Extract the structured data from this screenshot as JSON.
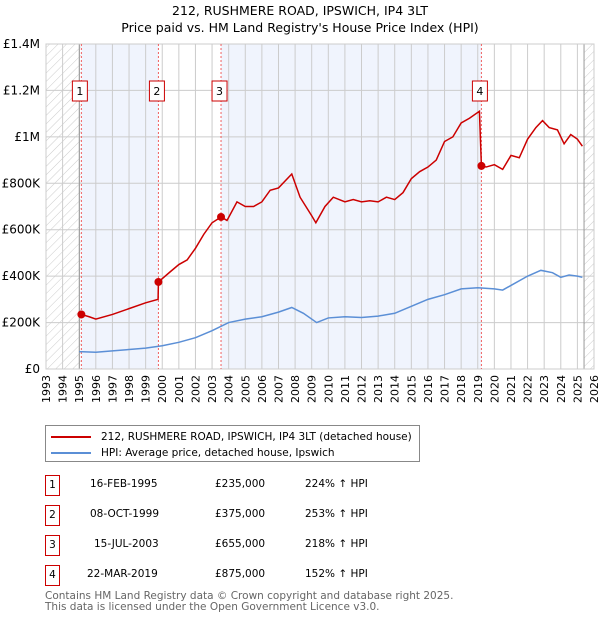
{
  "title": "212, RUSHMERE ROAD, IPSWICH, IP4 3LT",
  "subtitle": "Price paid vs. HM Land Registry's House Price Index (HPI)",
  "chart_data": {
    "type": "line",
    "xlim": [
      1993,
      2026
    ],
    "ylim": [
      0,
      1400000
    ],
    "x_ticks": [
      "1993",
      "1994",
      "1995",
      "1996",
      "1997",
      "1998",
      "1999",
      "2000",
      "2001",
      "2002",
      "2003",
      "2004",
      "2005",
      "2006",
      "2007",
      "2008",
      "2009",
      "2010",
      "2011",
      "2012",
      "2013",
      "2014",
      "2015",
      "2016",
      "2017",
      "2018",
      "2019",
      "2020",
      "2021",
      "2022",
      "2023",
      "2024",
      "2025",
      "2026"
    ],
    "y_ticks": [
      {
        "v": 0,
        "label": "£0"
      },
      {
        "v": 200000,
        "label": "£200K"
      },
      {
        "v": 400000,
        "label": "£400K"
      },
      {
        "v": 600000,
        "label": "£600K"
      },
      {
        "v": 800000,
        "label": "£800K"
      },
      {
        "v": 1000000,
        "label": "£1M"
      },
      {
        "v": 1200000,
        "label": "£1.2M"
      },
      {
        "v": 1400000,
        "label": "£1.4M"
      }
    ],
    "grid": true,
    "data_end": 2025.4,
    "series": [
      {
        "name": "212, RUSHMERE ROAD, IPSWICH, IP4 3LT (detached house)",
        "color": "#cc0000",
        "x": [
          1995.13,
          1995.6,
          1996,
          1997,
          1998,
          1999,
          1999.75,
          1999.77,
          2000.5,
          2001,
          2001.5,
          2002,
          2002.5,
          2003,
          2003.54,
          2003.9,
          2004.5,
          2005,
          2005.5,
          2006,
          2006.5,
          2007,
          2007.8,
          2008.3,
          2009,
          2009.25,
          2009.8,
          2010.3,
          2011,
          2011.5,
          2012,
          2012.5,
          2013,
          2013.5,
          2014,
          2014.5,
          2015,
          2015.5,
          2016,
          2016.5,
          2017,
          2017.5,
          2018,
          2018.5,
          2019.1,
          2019.22,
          2019.5,
          2020,
          2020.5,
          2021,
          2021.5,
          2022,
          2022.5,
          2022.9,
          2023.3,
          2023.8,
          2024.2,
          2024.6,
          2025,
          2025.3
        ],
        "y": [
          235000,
          225000,
          215000,
          235000,
          260000,
          285000,
          300000,
          375000,
          420000,
          450000,
          470000,
          520000,
          580000,
          630000,
          655000,
          640000,
          720000,
          700000,
          700000,
          720000,
          770000,
          780000,
          840000,
          740000,
          660000,
          630000,
          700000,
          740000,
          720000,
          730000,
          720000,
          725000,
          720000,
          740000,
          730000,
          760000,
          820000,
          850000,
          870000,
          900000,
          980000,
          1000000,
          1060000,
          1080000,
          1110000,
          875000,
          870000,
          880000,
          860000,
          920000,
          910000,
          990000,
          1040000,
          1070000,
          1040000,
          1030000,
          970000,
          1010000,
          990000,
          960000
        ]
      },
      {
        "name": "HPI: Average price, detached house, Ipswich",
        "color": "#5b8fd6",
        "x": [
          1995,
          1996,
          1997,
          1998,
          1999,
          2000,
          2001,
          2002,
          2003,
          2004,
          2005,
          2006,
          2007,
          2007.8,
          2008.5,
          2009.3,
          2010,
          2011,
          2012,
          2013,
          2014,
          2015,
          2016,
          2017,
          2018,
          2019,
          2020,
          2020.5,
          2021,
          2022,
          2022.8,
          2023.5,
          2024,
          2024.5,
          2025,
          2025.3
        ],
        "y": [
          75000,
          72000,
          78000,
          84000,
          90000,
          100000,
          115000,
          135000,
          165000,
          200000,
          215000,
          225000,
          245000,
          265000,
          240000,
          200000,
          220000,
          225000,
          222000,
          228000,
          240000,
          270000,
          300000,
          320000,
          345000,
          350000,
          345000,
          340000,
          360000,
          400000,
          425000,
          415000,
          395000,
          405000,
          400000,
          395000
        ]
      }
    ],
    "sales": [
      {
        "n": "1",
        "x": 1995.13,
        "v": 235000,
        "date": "16-FEB-1995",
        "price": "£235,000",
        "hpi": "224% ↑ HPI"
      },
      {
        "n": "2",
        "x": 1999.77,
        "v": 375000,
        "date": "08-OCT-1999",
        "price": "£375,000",
        "hpi": "253% ↑ HPI"
      },
      {
        "n": "3",
        "x": 2003.54,
        "v": 655000,
        "date": "15-JUL-2003",
        "price": "£655,000",
        "hpi": "218% ↑ HPI"
      },
      {
        "n": "4",
        "x": 2019.22,
        "v": 875000,
        "date": "22-MAR-2019",
        "price": "£875,000",
        "hpi": "152% ↑ HPI"
      }
    ]
  },
  "legend": {
    "red_label": "212, RUSHMERE ROAD, IPSWICH, IP4 3LT (detached house)",
    "blue_label": "HPI: Average price, detached house, Ipswich"
  },
  "footer": {
    "line1": "Contains HM Land Registry data © Crown copyright and database right 2025.",
    "line2": "This data is licensed under the Open Government Licence v3.0."
  }
}
